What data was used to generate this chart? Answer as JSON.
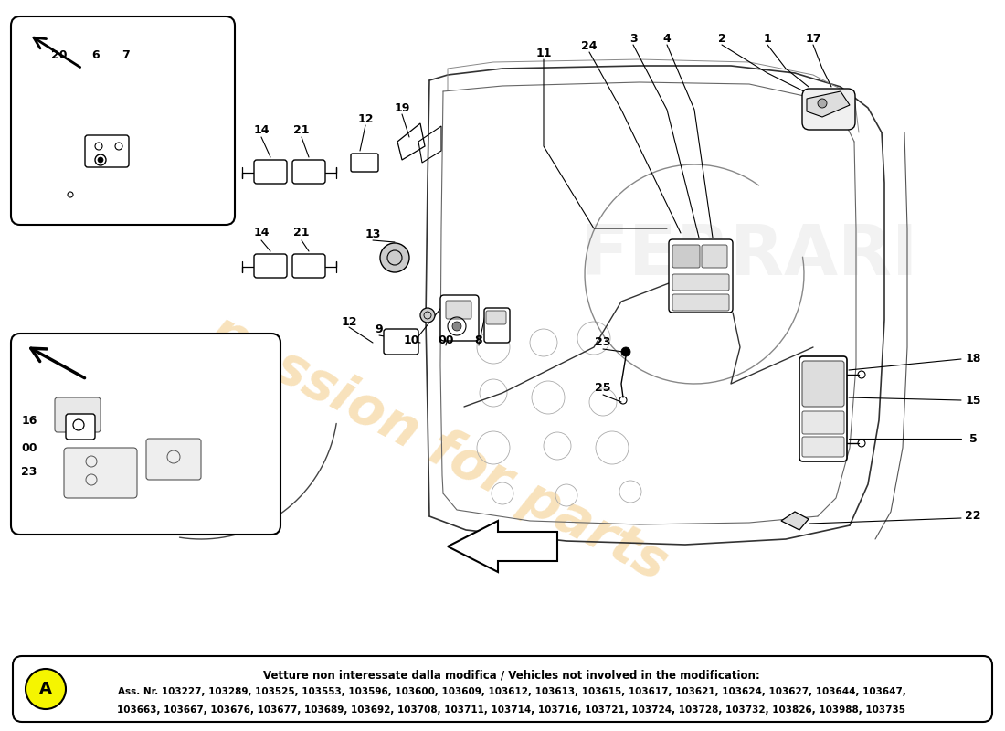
{
  "bg": "#ffffff",
  "wm_text": "passion for parts",
  "wm_color": "#e8a020",
  "wm_alpha": 0.3,
  "footer": {
    "title_line": "Vetture non interessate dalla modifica / Vehicles not involved in the modification:",
    "numbers_line1": "Ass. Nr. 103227, 103289, 103525, 103553, 103596, 103600, 103609, 103612, 103613, 103615, 103617, 103621, 103624, 103627, 103644, 103647,",
    "numbers_line2": "103663, 103667, 103676, 103677, 103689, 103692, 103708, 103711, 103714, 103716, 103721, 103724, 103728, 103732, 103826, 103988, 103735",
    "circle_color": "#f5f500",
    "circle_label": "A"
  }
}
